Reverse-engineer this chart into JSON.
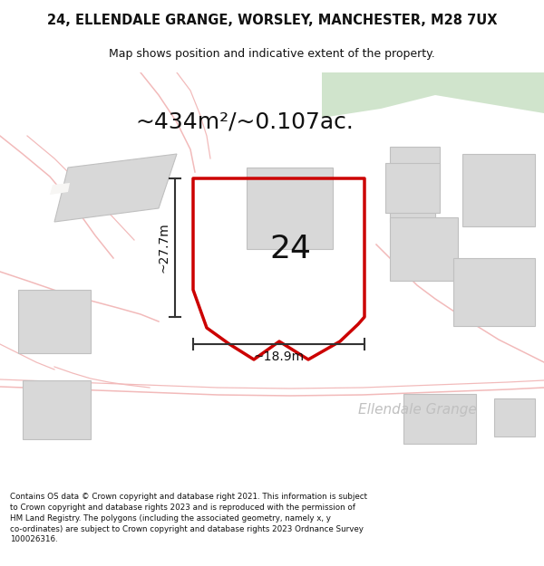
{
  "title": "24, ELLENDALE GRANGE, WORSLEY, MANCHESTER, M28 7UX",
  "subtitle": "Map shows position and indicative extent of the property.",
  "area_label": "~434m²/~0.107ac.",
  "number_label": "24",
  "dim_vertical": "~27.7m",
  "dim_horizontal": "~18.9m",
  "street_label": "Ellendale Grange",
  "footer": "Contains OS data © Crown copyright and database right 2021. This information is subject to Crown copyright and database rights 2023 and is reproduced with the permission of HM Land Registry. The polygons (including the associated geometry, namely x, y co-ordinates) are subject to Crown copyright and database rights 2023 Ordnance Survey 100026316.",
  "bg_color": "#ffffff",
  "map_bg": "#f7f6f4",
  "green_color": "#d0e4cc",
  "road_color": "#f2baba",
  "building_color": "#d8d8d8",
  "building_edge": "#c0c0c0",
  "red_polygon_color": "#cc0000",
  "dim_color": "#333333",
  "title_fontsize": 10.5,
  "subtitle_fontsize": 9,
  "area_fontsize": 18,
  "number_fontsize": 26,
  "dim_fontsize": 10,
  "street_fontsize": 11,
  "footer_fontsize": 6.3
}
